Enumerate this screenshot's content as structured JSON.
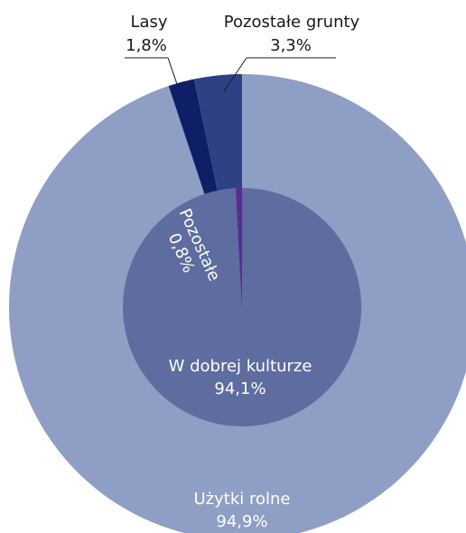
{
  "chart_data": {
    "type": "pie",
    "title": "",
    "rings": [
      {
        "name": "outer",
        "slices": [
          {
            "label": "Użytki rolne",
            "value_text": "94,9%",
            "value": 94.9,
            "color": "#8f9ec4"
          },
          {
            "label": "Lasy",
            "value_text": "1,8%",
            "value": 1.8,
            "color": "#0e1f68"
          },
          {
            "label": "Pozostałe grunty",
            "value_text": "3,3%",
            "value": 3.3,
            "color": "#2e4185"
          }
        ]
      },
      {
        "name": "inner",
        "slices": [
          {
            "label": "W dobrej kulturze",
            "value_text": "94,1%",
            "value": 94.1,
            "color": "#5e6ca0"
          },
          {
            "label": "Pozostałe",
            "value_text": "0,8%",
            "value": 0.8,
            "color": "#5b2c8f"
          }
        ]
      }
    ]
  }
}
